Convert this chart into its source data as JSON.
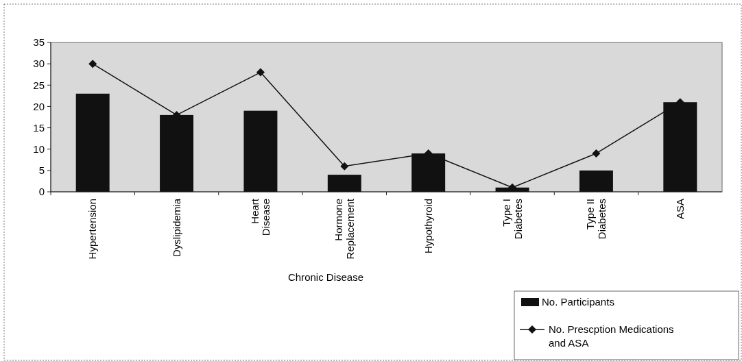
{
  "chart_data": {
    "type": "bar",
    "xlabel": "Chronic Disease",
    "categories": [
      "Hypertension",
      "Dyslipidemia",
      "Heart Disease",
      "Hormone Replacement",
      "Hypothyroid",
      "Type I Diabetes",
      "Type II Diabetes",
      "ASA"
    ],
    "series": [
      {
        "name": "No. Participants",
        "color": "#111111",
        "values": [
          23,
          18,
          19,
          4,
          9,
          1,
          5,
          21
        ]
      },
      {
        "name": "No. Prescption Medications and ASA",
        "type": "line",
        "color": "#111111",
        "marker": "diamond",
        "values": [
          30,
          18,
          28,
          6,
          9,
          1,
          9,
          21
        ]
      }
    ],
    "ylim": [
      0,
      35
    ],
    "yticks": [
      0,
      5,
      10,
      15,
      20,
      25,
      30,
      35
    ],
    "grid": false,
    "legend": "bottom right"
  }
}
